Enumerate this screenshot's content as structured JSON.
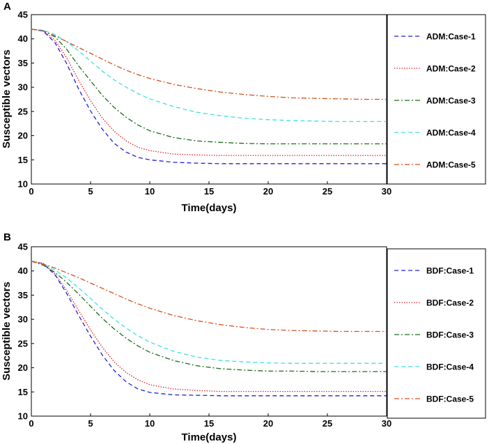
{
  "figure": {
    "panels": [
      "A",
      "B"
    ]
  },
  "chart_data": [
    {
      "panel": "A",
      "type": "line",
      "title": "",
      "xlabel": "Time(days)",
      "ylabel": "Susceptible vectors",
      "xlim": [
        0,
        30
      ],
      "ylim": [
        10,
        45
      ],
      "xticks": [
        0,
        5,
        10,
        15,
        20,
        25,
        30
      ],
      "yticks": [
        10,
        15,
        20,
        25,
        30,
        35,
        40,
        45
      ],
      "grid": false,
      "legend_position": "right-outside",
      "x": [
        0,
        1,
        2,
        3,
        4,
        5,
        6,
        7,
        8,
        9,
        10,
        12,
        14,
        16,
        18,
        20,
        22,
        24,
        26,
        28,
        30
      ],
      "series": [
        {
          "name": "ADM:Case-1",
          "color": "#1f1fdc",
          "dash": "dashed",
          "values": [
            42,
            41.6,
            39.2,
            34.8,
            29.6,
            25.1,
            21.3,
            18.4,
            16.6,
            15.5,
            15.0,
            14.5,
            14.3,
            14.2,
            14.2,
            14.2,
            14.2,
            14.2,
            14.2,
            14.2,
            14.2
          ]
        },
        {
          "name": "ADM:Case-2",
          "color": "#e61e1e",
          "dash": "dotted",
          "values": [
            42,
            41.7,
            39.7,
            36.0,
            31.4,
            27.2,
            23.6,
            20.9,
            18.9,
            17.6,
            16.9,
            16.2,
            16.0,
            15.9,
            15.9,
            15.9,
            15.9,
            15.9,
            15.9,
            15.9,
            15.9
          ]
        },
        {
          "name": "ADM:Case-3",
          "color": "#1a6e1a",
          "dash": "dashdot",
          "values": [
            42,
            41.7,
            40.4,
            37.8,
            34.4,
            31.3,
            28.3,
            25.8,
            23.8,
            22.2,
            21.0,
            19.6,
            18.9,
            18.6,
            18.4,
            18.3,
            18.3,
            18.3,
            18.3,
            18.3,
            18.3
          ]
        },
        {
          "name": "ADM:Case-4",
          "color": "#3ee0e0",
          "dash": "dashed",
          "values": [
            42,
            41.8,
            40.9,
            39.4,
            37.5,
            35.4,
            33.3,
            31.5,
            30.0,
            28.7,
            27.6,
            26.0,
            24.8,
            24.1,
            23.6,
            23.3,
            23.1,
            23.0,
            22.9,
            22.9,
            22.9
          ]
        },
        {
          "name": "ADM:Case-5",
          "color": "#d2501e",
          "dash": "dashdot",
          "values": [
            42,
            41.6,
            40.6,
            39.4,
            38.2,
            37.0,
            35.8,
            34.6,
            33.5,
            32.6,
            31.8,
            30.6,
            29.7,
            29.0,
            28.5,
            28.1,
            27.8,
            27.7,
            27.6,
            27.5,
            27.5
          ]
        }
      ]
    },
    {
      "panel": "B",
      "type": "line",
      "title": "",
      "xlabel": "Time(days)",
      "ylabel": "Susceptible vectors",
      "xlim": [
        0,
        30
      ],
      "ylim": [
        10,
        45
      ],
      "xticks": [
        0,
        5,
        10,
        15,
        20,
        25,
        30
      ],
      "yticks": [
        10,
        15,
        20,
        25,
        30,
        35,
        40,
        45
      ],
      "grid": false,
      "legend_position": "right-outside",
      "x": [
        0,
        1,
        2,
        3,
        4,
        5,
        6,
        7,
        8,
        9,
        10,
        12,
        14,
        16,
        18,
        20,
        22,
        24,
        26,
        28,
        30
      ],
      "series": [
        {
          "name": "BDF:Case-1",
          "color": "#1f1fdc",
          "dash": "dashed",
          "values": [
            42,
            41.5,
            39.2,
            35.3,
            30.8,
            26.5,
            22.6,
            19.4,
            17.1,
            15.6,
            14.9,
            14.4,
            14.3,
            14.2,
            14.2,
            14.2,
            14.2,
            14.2,
            14.2,
            14.2,
            14.2
          ]
        },
        {
          "name": "BDF:Case-2",
          "color": "#e61e1e",
          "dash": "dotted",
          "values": [
            42,
            41.6,
            39.4,
            35.9,
            31.8,
            27.8,
            24.2,
            21.2,
            19.0,
            17.5,
            16.5,
            15.6,
            15.3,
            15.1,
            15.1,
            15.1,
            15.1,
            15.1,
            15.1,
            15.1,
            15.1
          ]
        },
        {
          "name": "BDF:Case-3",
          "color": "#1a6e1a",
          "dash": "dashdot",
          "values": [
            42,
            41.2,
            39.7,
            37.6,
            35.2,
            32.7,
            30.2,
            28.0,
            26.1,
            24.5,
            23.2,
            21.5,
            20.4,
            19.8,
            19.5,
            19.3,
            19.3,
            19.2,
            19.2,
            19.2,
            19.2
          ]
        },
        {
          "name": "BDF:Case-4",
          "color": "#3ee0e0",
          "dash": "dashed",
          "values": [
            42,
            41.4,
            40.2,
            38.5,
            36.5,
            34.3,
            32.1,
            30.0,
            28.2,
            26.6,
            25.3,
            23.4,
            22.2,
            21.5,
            21.2,
            21.0,
            20.9,
            20.9,
            20.9,
            20.9,
            20.9
          ]
        },
        {
          "name": "BDF:Case-5",
          "color": "#d2501e",
          "dash": "dashdot",
          "values": [
            42,
            41.4,
            40.6,
            39.6,
            38.6,
            37.5,
            36.4,
            35.3,
            34.2,
            33.2,
            32.3,
            30.8,
            29.7,
            28.9,
            28.3,
            27.9,
            27.7,
            27.6,
            27.5,
            27.5,
            27.5
          ]
        }
      ]
    }
  ]
}
